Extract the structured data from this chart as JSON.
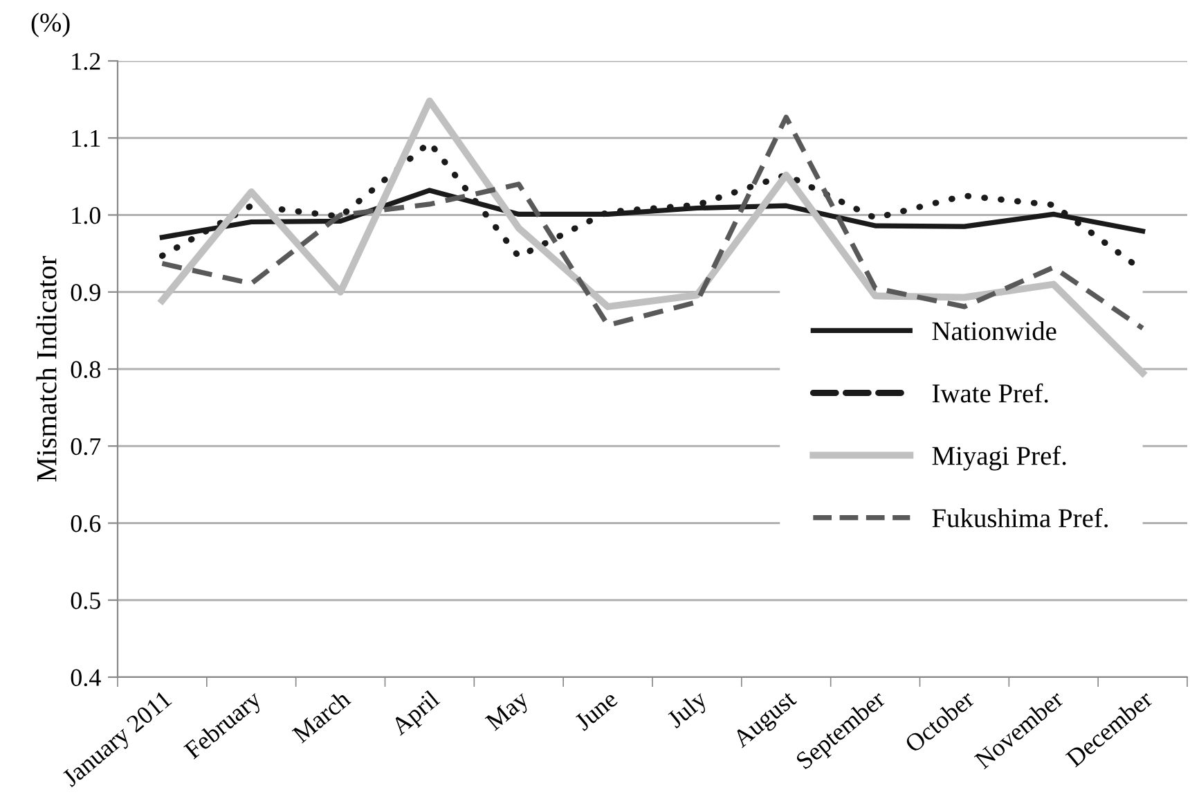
{
  "chart_data": {
    "type": "line",
    "ylabel": "Mismatch Indicator",
    "annotations": [
      "(%)"
    ],
    "categories": [
      "January 2011",
      "February",
      "March",
      "April",
      "May",
      "June",
      "July",
      "August",
      "September",
      "October",
      "November",
      "December"
    ],
    "series": [
      {
        "name": "Nationwide",
        "color": "#1a1a1a",
        "line_style": "solid",
        "values": [
          0.971,
          0.991,
          0.992,
          1.032,
          1.001,
          1.001,
          1.009,
          1.012,
          0.986,
          0.985,
          1.001,
          0.979
        ]
      },
      {
        "name": "Iwate Pref.",
        "color": "#1a1a1a",
        "line_style": "dotted",
        "values": [
          0.947,
          1.012,
          0.998,
          1.094,
          0.946,
          1.004,
          1.013,
          1.052,
          0.996,
          1.025,
          1.013,
          0.928
        ]
      },
      {
        "name": "Miyagi Pref.",
        "color": "#c0c0c0",
        "line_style": "solid",
        "values": [
          0.889,
          1.03,
          0.9,
          1.148,
          0.983,
          0.881,
          0.896,
          1.052,
          0.895,
          0.893,
          0.91,
          0.795
        ]
      },
      {
        "name": "Fukushima Pref.",
        "color": "#595959",
        "line_style": "dashed",
        "values": [
          0.937,
          0.911,
          1.0,
          1.014,
          1.04,
          0.857,
          0.887,
          1.127,
          0.905,
          0.881,
          0.932,
          0.853
        ]
      }
    ],
    "ylim": [
      0.4,
      1.2
    ],
    "yticks": [
      {
        "value": 0.4,
        "label": "0.4"
      },
      {
        "value": 0.5,
        "label": "0.5"
      },
      {
        "value": 0.6,
        "label": "0.6"
      },
      {
        "value": 0.7,
        "label": "0.7"
      },
      {
        "value": 0.8,
        "label": "0.8"
      },
      {
        "value": 0.9,
        "label": "0.9"
      },
      {
        "value": 1.0,
        "label": "1.0"
      },
      {
        "value": 1.1,
        "label": "1.1"
      },
      {
        "value": 1.2,
        "label": "1.2"
      }
    ],
    "grid": "y",
    "legend": "bottom right",
    "marker": "none"
  }
}
